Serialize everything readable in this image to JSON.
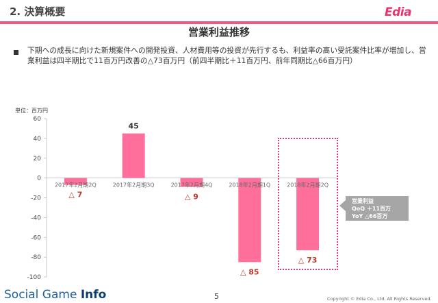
{
  "header": {
    "section_title": "2. 決算概要",
    "logo_text": "Edia"
  },
  "slide": {
    "title": "営業利益推移",
    "bullet": "下期への成長に向けた新規案件への開発投資、人材費用等の投資が先行するも、利益率の高い受託案件比率が増加し、営業利益は四半期比で11百万円改善の△73百万円（前四半期比＋11百万円、前年同期比△66百万円）"
  },
  "chart_data": {
    "type": "bar",
    "unit_label": "単位：百万円",
    "categories": [
      "2017年2月期2Q",
      "2017年2月期3Q",
      "2017年2月期4Q",
      "2018年2月期1Q",
      "2018年2月期2Q"
    ],
    "values": [
      -7,
      45,
      -9,
      -85,
      -73
    ],
    "value_labels": [
      "△ 7",
      "45",
      "△ 9",
      "△ 85",
      "△ 73"
    ],
    "yticks": [
      60,
      40,
      20,
      0,
      -20,
      -40,
      -60,
      -80,
      -100
    ],
    "ylim": [
      -100,
      60
    ],
    "bar_color": "#ff6f9c",
    "label_color_negative": "#c0392b",
    "label_color_positive": "#333333",
    "highlight_category": "2018年2月期2Q",
    "annotation": {
      "lines": [
        "営業利益",
        "QoQ ＋11百万",
        "YoY △66百万"
      ]
    }
  },
  "footer": {
    "brand_prefix": "Social Game ",
    "brand_suffix": "Info",
    "page_number": "5",
    "copyright": "Copyright © Edia Co., Ltd. All Rights Reserved."
  }
}
